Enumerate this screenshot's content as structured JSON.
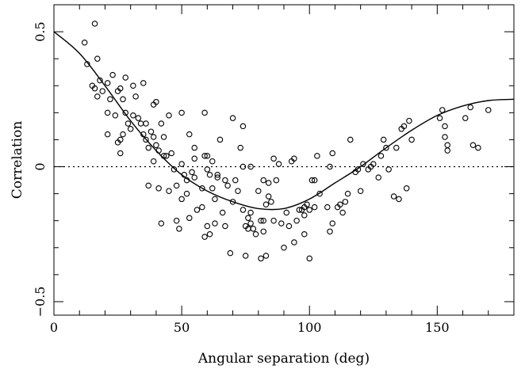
{
  "chart_data": {
    "type": "scatter",
    "title": "",
    "xlabel": "Angular separation (deg)",
    "ylabel": "Correlation",
    "xlim": [
      0,
      180
    ],
    "ylim": [
      -0.55,
      0.6
    ],
    "xticks": [
      0,
      50,
      100,
      150
    ],
    "xtick_labels": [
      "0",
      "50",
      "100",
      "150"
    ],
    "yticks": [
      -0.5,
      0,
      0.5
    ],
    "ytick_labels": [
      "−0.5",
      "0",
      "0.5"
    ],
    "grid": false,
    "reference_line": {
      "y": 0,
      "style": "dotted"
    },
    "fit_curve": {
      "x": [
        0,
        10,
        20,
        30,
        40,
        50,
        60,
        70,
        80,
        90,
        100,
        110,
        120,
        130,
        140,
        150,
        160,
        170,
        180
      ],
      "y": [
        0.5,
        0.42,
        0.3,
        0.17,
        0.06,
        -0.03,
        -0.09,
        -0.13,
        -0.155,
        -0.155,
        -0.12,
        -0.06,
        0.0,
        0.07,
        0.135,
        0.19,
        0.225,
        0.245,
        0.25
      ]
    },
    "series": [
      {
        "marker": "open-circle",
        "points": [
          [
            12,
            0.46
          ],
          [
            13,
            0.38
          ],
          [
            15,
            0.3
          ],
          [
            16,
            0.53
          ],
          [
            16,
            0.29
          ],
          [
            17,
            0.4
          ],
          [
            17,
            0.26
          ],
          [
            18,
            0.32
          ],
          [
            19,
            0.28
          ],
          [
            21,
            0.31
          ],
          [
            21,
            0.2
          ],
          [
            21,
            0.12
          ],
          [
            22,
            0.25
          ],
          [
            23,
            0.34
          ],
          [
            24,
            0.19
          ],
          [
            25,
            0.28
          ],
          [
            25,
            0.09
          ],
          [
            26,
            0.29
          ],
          [
            26,
            0.1
          ],
          [
            26,
            0.05
          ],
          [
            27,
            0.25
          ],
          [
            27,
            0.12
          ],
          [
            28,
            0.2
          ],
          [
            28,
            0.33
          ],
          [
            29,
            0.16
          ],
          [
            30,
            0.14
          ],
          [
            31,
            0.19
          ],
          [
            31,
            0.3
          ],
          [
            32,
            0.26
          ],
          [
            33,
            0.18
          ],
          [
            34,
            0.16
          ],
          [
            35,
            0.12
          ],
          [
            35,
            0.31
          ],
          [
            36,
            0.16
          ],
          [
            36,
            0.1
          ],
          [
            37,
            0.07
          ],
          [
            37,
            -0.07
          ],
          [
            38,
            0.13
          ],
          [
            39,
            0.23
          ],
          [
            39,
            0.11
          ],
          [
            39,
            0.02
          ],
          [
            40,
            0.24
          ],
          [
            40,
            0.08
          ],
          [
            41,
            0.06
          ],
          [
            41,
            -0.08
          ],
          [
            42,
            0.16
          ],
          [
            42,
            -0.21
          ],
          [
            43,
            0.04
          ],
          [
            43,
            0.11
          ],
          [
            44,
            0.04
          ],
          [
            45,
            -0.09
          ],
          [
            45,
            0.19
          ],
          [
            46,
            0.05
          ],
          [
            47,
            -0.01
          ],
          [
            48,
            -0.2
          ],
          [
            48,
            -0.07
          ],
          [
            49,
            -0.23
          ],
          [
            50,
            0.2
          ],
          [
            50,
            -0.12
          ],
          [
            50,
            0.01
          ],
          [
            51,
            -0.03
          ],
          [
            52,
            -0.05
          ],
          [
            52,
            -0.1
          ],
          [
            53,
            -0.19
          ],
          [
            53,
            0.12
          ],
          [
            54,
            -0.02
          ],
          [
            55,
            0.07
          ],
          [
            55,
            0.03
          ],
          [
            55,
            -0.04
          ],
          [
            56,
            -0.16
          ],
          [
            58,
            -0.15
          ],
          [
            58,
            -0.08
          ],
          [
            59,
            0.2
          ],
          [
            59,
            0.04
          ],
          [
            59,
            -0.26
          ],
          [
            60,
            -0.01
          ],
          [
            60,
            0.04
          ],
          [
            60,
            -0.22
          ],
          [
            61,
            -0.03
          ],
          [
            61,
            -0.25
          ],
          [
            62,
            -0.08
          ],
          [
            62,
            0.02
          ],
          [
            63,
            -0.21
          ],
          [
            63,
            -0.12
          ],
          [
            64,
            -0.03
          ],
          [
            64,
            -0.04
          ],
          [
            65,
            0.1
          ],
          [
            66,
            -0.17
          ],
          [
            67,
            -0.05
          ],
          [
            67,
            -0.22
          ],
          [
            68,
            -0.07
          ],
          [
            69,
            -0.32
          ],
          [
            70,
            0.18
          ],
          [
            70,
            -0.13
          ],
          [
            71,
            -0.05
          ],
          [
            72,
            -0.09
          ],
          [
            73,
            0.07
          ],
          [
            74,
            0.15
          ],
          [
            74,
            0.0
          ],
          [
            74,
            -0.16
          ],
          [
            75,
            -0.22
          ],
          [
            75,
            -0.33
          ],
          [
            76,
            -0.23
          ],
          [
            76,
            -0.19
          ],
          [
            77,
            0.0
          ],
          [
            77,
            -0.17
          ],
          [
            77,
            -0.21
          ],
          [
            78,
            -0.23
          ],
          [
            79,
            -0.25
          ],
          [
            80,
            -0.09
          ],
          [
            81,
            -0.2
          ],
          [
            81,
            -0.34
          ],
          [
            82,
            -0.24
          ],
          [
            82,
            -0.2
          ],
          [
            82,
            -0.05
          ],
          [
            83,
            -0.14
          ],
          [
            83,
            -0.33
          ],
          [
            84,
            -0.06
          ],
          [
            84,
            -0.11
          ],
          [
            85,
            -0.13
          ],
          [
            86,
            0.03
          ],
          [
            86,
            -0.2
          ],
          [
            87,
            -0.05
          ],
          [
            88,
            0.01
          ],
          [
            89,
            -0.21
          ],
          [
            90,
            -0.3
          ],
          [
            91,
            -0.17
          ],
          [
            92,
            -0.22
          ],
          [
            93,
            0.02
          ],
          [
            94,
            0.03
          ],
          [
            94,
            -0.28
          ],
          [
            95,
            -0.2
          ],
          [
            96,
            -0.16
          ],
          [
            97,
            -0.16
          ],
          [
            98,
            -0.18
          ],
          [
            98,
            -0.25
          ],
          [
            98,
            -0.15
          ],
          [
            99,
            -0.14
          ],
          [
            100,
            -0.16
          ],
          [
            100,
            -0.34
          ],
          [
            101,
            -0.05
          ],
          [
            102,
            -0.15
          ],
          [
            102,
            -0.05
          ],
          [
            103,
            0.04
          ],
          [
            104,
            -0.1
          ],
          [
            107,
            -0.15
          ],
          [
            108,
            -0.24
          ],
          [
            108,
            0.0
          ],
          [
            109,
            -0.21
          ],
          [
            109,
            0.05
          ],
          [
            111,
            -0.15
          ],
          [
            112,
            -0.14
          ],
          [
            113,
            -0.17
          ],
          [
            114,
            -0.13
          ],
          [
            115,
            -0.1
          ],
          [
            116,
            0.1
          ],
          [
            118,
            -0.02
          ],
          [
            119,
            -0.01
          ],
          [
            120,
            -0.09
          ],
          [
            121,
            0.01
          ],
          [
            123,
            -0.01
          ],
          [
            124,
            0.0
          ],
          [
            125,
            0.01
          ],
          [
            127,
            -0.04
          ],
          [
            128,
            0.04
          ],
          [
            129,
            0.1
          ],
          [
            130,
            0.07
          ],
          [
            131,
            -0.01
          ],
          [
            133,
            -0.11
          ],
          [
            134,
            0.07
          ],
          [
            135,
            -0.12
          ],
          [
            136,
            0.14
          ],
          [
            137,
            0.15
          ],
          [
            138,
            -0.08
          ],
          [
            139,
            0.17
          ],
          [
            140,
            0.1
          ],
          [
            151,
            0.18
          ],
          [
            152,
            0.21
          ],
          [
            153,
            0.15
          ],
          [
            153,
            0.11
          ],
          [
            154,
            0.08
          ],
          [
            154,
            0.06
          ],
          [
            161,
            0.18
          ],
          [
            163,
            0.22
          ],
          [
            164,
            0.08
          ],
          [
            166,
            0.07
          ],
          [
            170,
            0.21
          ]
        ]
      }
    ]
  }
}
